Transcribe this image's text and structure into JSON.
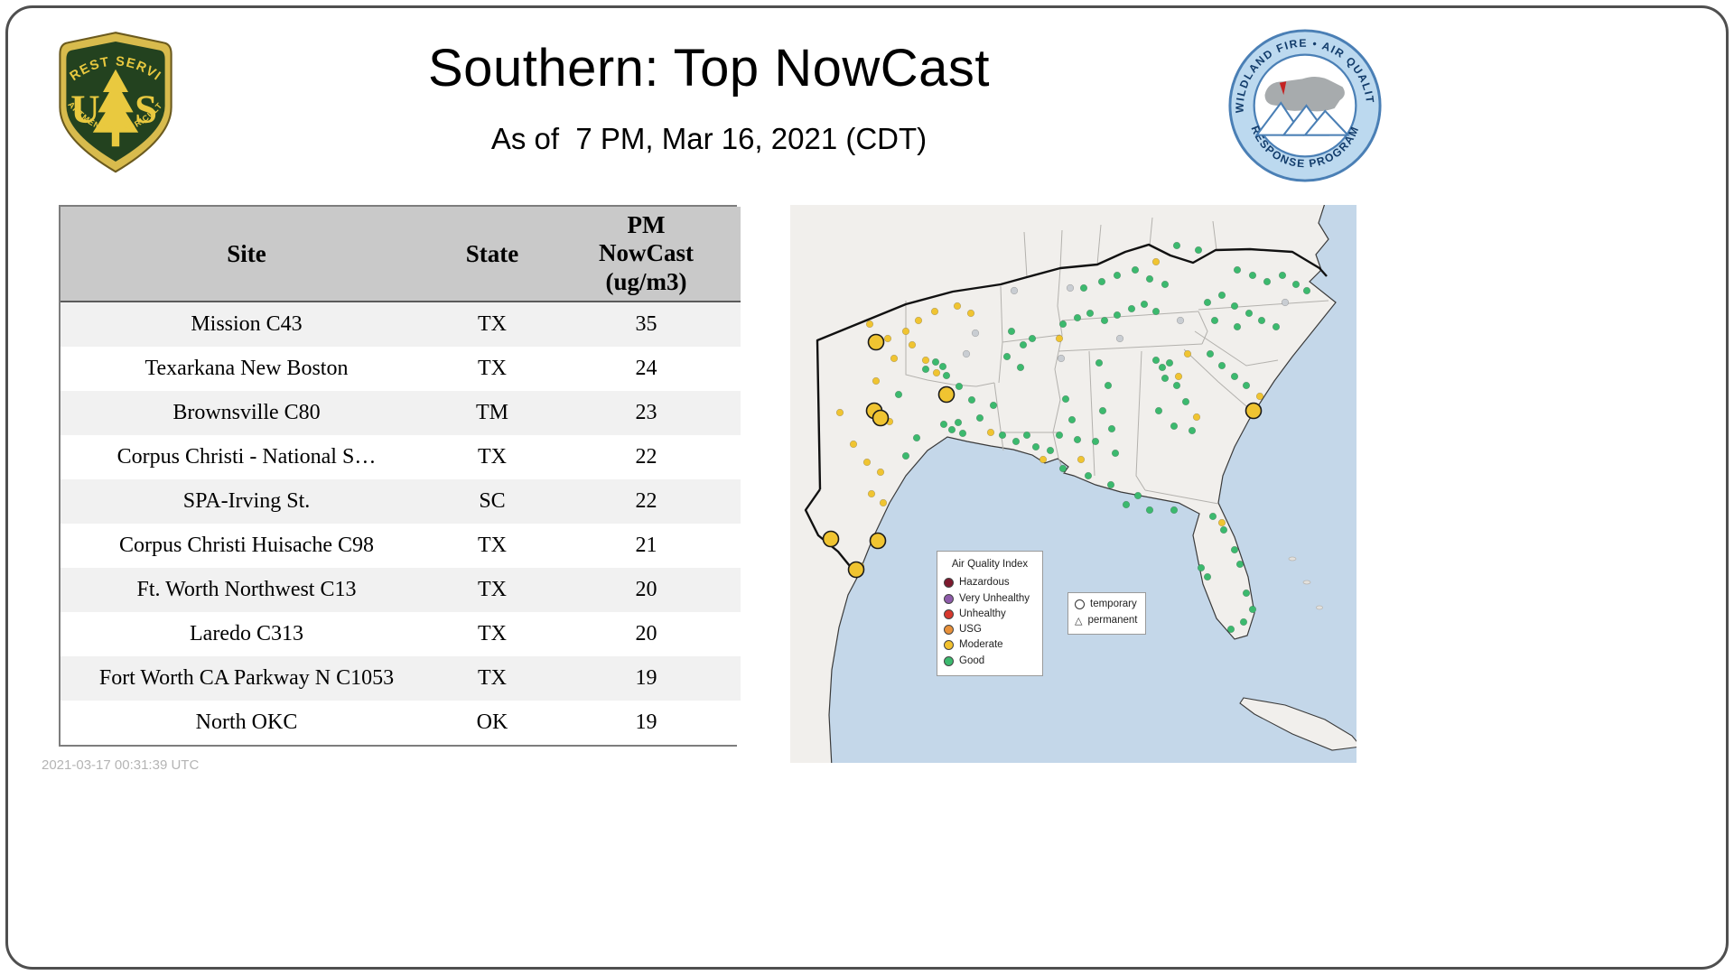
{
  "page": {
    "title": "Southern: Top NowCast",
    "subtitle": "As of  7 PM, Mar 16, 2021 (CDT)",
    "timestamp": "2021-03-17 00:31:39 UTC"
  },
  "logos": {
    "forest_service": {
      "arc_top": "FOREST SERVICE",
      "letter_left": "U",
      "letter_right": "S",
      "arc_bottom": "DEPARTMENT OF AGRICULTURE"
    },
    "air_quality": {
      "arc_top": "WILDLAND FIRE • AIR QUALITY",
      "arc_bottom": "RESPONSE PROGRAM"
    }
  },
  "table": {
    "header_display": {
      "site": "Site",
      "state": "State",
      "pm": "PM\nNowCast\n(ug/m3)"
    },
    "rows": [
      [
        "Mission C43",
        "TX",
        "35"
      ],
      [
        "Texarkana New Boston",
        "TX",
        "24"
      ],
      [
        "Brownsville C80",
        "TM",
        "23"
      ],
      [
        "Corpus Christi - National S…",
        "TX",
        "22"
      ],
      [
        "SPA-Irving St.",
        "SC",
        "22"
      ],
      [
        "Corpus Christi Huisache C98",
        "TX",
        "21"
      ],
      [
        "Ft. Worth Northwest C13",
        "TX",
        "20"
      ],
      [
        "Laredo C313",
        "TX",
        "20"
      ],
      [
        "Fort Worth CA Parkway N C1053",
        "TX",
        "19"
      ],
      [
        "North OKC",
        "OK",
        "19"
      ]
    ]
  },
  "chart_data": {
    "type": "table",
    "title": "Southern: Top NowCast",
    "subtitle": "As of  7 PM, Mar 16, 2021 (CDT)",
    "columns": [
      "Site",
      "State",
      "PM NowCast (ug/m3)"
    ],
    "rows": [
      [
        "Mission C43",
        "TX",
        35
      ],
      [
        "Texarkana New Boston",
        "TX",
        24
      ],
      [
        "Brownsville C80",
        "TM",
        23
      ],
      [
        "Corpus Christi - National S…",
        "TX",
        22
      ],
      [
        "SPA-Irving St.",
        "SC",
        22
      ],
      [
        "Corpus Christi Huisache C98",
        "TX",
        21
      ],
      [
        "Ft. Worth Northwest C13",
        "TX",
        20
      ],
      [
        "Laredo C313",
        "TX",
        20
      ],
      [
        "Fort Worth CA Parkway N C1053",
        "TX",
        19
      ],
      [
        "North OKC",
        "OK",
        19
      ]
    ]
  },
  "map": {
    "legend": {
      "title": "Air Quality Index",
      "items": [
        {
          "label": "Hazardous",
          "color": "#7d1a2e"
        },
        {
          "label": "Very Unhealthy",
          "color": "#8e5baa"
        },
        {
          "label": "Unhealthy",
          "color": "#d7382e"
        },
        {
          "label": "USG",
          "color": "#e8913a"
        },
        {
          "label": "Moderate",
          "color": "#f2c12e"
        },
        {
          "label": "Good",
          "color": "#3cb96e"
        }
      ]
    },
    "marker_legend": {
      "temporary": "temporary",
      "permanent": "permanent"
    },
    "colors": {
      "g": "#3cb96e",
      "y": "#f0c431",
      "n": "#c9cdd2"
    },
    "dots": [
      [
        150,
        182,
        "g"
      ],
      [
        161,
        174,
        "g"
      ],
      [
        169,
        179,
        "g"
      ],
      [
        173,
        189,
        "g"
      ],
      [
        187,
        201,
        "g"
      ],
      [
        201,
        216,
        "g"
      ],
      [
        210,
        236,
        "g"
      ],
      [
        225,
        222,
        "g"
      ],
      [
        170,
        243,
        "g"
      ],
      [
        179,
        249,
        "g"
      ],
      [
        186,
        241,
        "g"
      ],
      [
        191,
        253,
        "g"
      ],
      [
        140,
        258,
        "g"
      ],
      [
        128,
        278,
        "g"
      ],
      [
        120,
        210,
        "g"
      ],
      [
        245,
        140,
        "g"
      ],
      [
        258,
        155,
        "g"
      ],
      [
        268,
        148,
        "g"
      ],
      [
        240,
        168,
        "g"
      ],
      [
        255,
        180,
        "g"
      ],
      [
        235,
        255,
        "g"
      ],
      [
        250,
        262,
        "g"
      ],
      [
        262,
        255,
        "g"
      ],
      [
        272,
        268,
        "g"
      ],
      [
        288,
        272,
        "g"
      ],
      [
        305,
        215,
        "g"
      ],
      [
        312,
        238,
        "g"
      ],
      [
        298,
        255,
        "g"
      ],
      [
        318,
        260,
        "g"
      ],
      [
        342,
        175,
        "g"
      ],
      [
        352,
        200,
        "g"
      ],
      [
        346,
        228,
        "g"
      ],
      [
        356,
        248,
        "g"
      ],
      [
        338,
        262,
        "g"
      ],
      [
        360,
        275,
        "g"
      ],
      [
        405,
        172,
        "g"
      ],
      [
        412,
        180,
        "g"
      ],
      [
        420,
        175,
        "g"
      ],
      [
        415,
        192,
        "g"
      ],
      [
        428,
        200,
        "g"
      ],
      [
        438,
        218,
        "g"
      ],
      [
        408,
        228,
        "g"
      ],
      [
        425,
        245,
        "g"
      ],
      [
        445,
        250,
        "g"
      ],
      [
        372,
        332,
        "g"
      ],
      [
        398,
        338,
        "g"
      ],
      [
        425,
        338,
        "g"
      ],
      [
        468,
        345,
        "g"
      ],
      [
        480,
        360,
        "g"
      ],
      [
        492,
        382,
        "g"
      ],
      [
        498,
        398,
        "g"
      ],
      [
        455,
        402,
        "g"
      ],
      [
        462,
        412,
        "g"
      ],
      [
        505,
        430,
        "g"
      ],
      [
        512,
        448,
        "g"
      ],
      [
        502,
        462,
        "g"
      ],
      [
        488,
        470,
        "g"
      ],
      [
        302,
        132,
        "g"
      ],
      [
        318,
        125,
        "g"
      ],
      [
        332,
        120,
        "g"
      ],
      [
        348,
        128,
        "g"
      ],
      [
        362,
        122,
        "g"
      ],
      [
        378,
        115,
        "g"
      ],
      [
        392,
        110,
        "g"
      ],
      [
        405,
        118,
        "g"
      ],
      [
        325,
        92,
        "g"
      ],
      [
        345,
        85,
        "g"
      ],
      [
        362,
        78,
        "g"
      ],
      [
        382,
        72,
        "g"
      ],
      [
        398,
        82,
        "g"
      ],
      [
        415,
        88,
        "g"
      ],
      [
        428,
        45,
        "g"
      ],
      [
        452,
        50,
        "g"
      ],
      [
        462,
        108,
        "g"
      ],
      [
        478,
        100,
        "g"
      ],
      [
        492,
        112,
        "g"
      ],
      [
        508,
        120,
        "g"
      ],
      [
        522,
        128,
        "g"
      ],
      [
        538,
        135,
        "g"
      ],
      [
        470,
        128,
        "g"
      ],
      [
        495,
        135,
        "g"
      ],
      [
        465,
        165,
        "g"
      ],
      [
        478,
        178,
        "g"
      ],
      [
        492,
        190,
        "g"
      ],
      [
        505,
        200,
        "g"
      ],
      [
        495,
        72,
        "g"
      ],
      [
        512,
        78,
        "g"
      ],
      [
        528,
        85,
        "g"
      ],
      [
        545,
        78,
        "g"
      ],
      [
        560,
        88,
        "g"
      ],
      [
        572,
        95,
        "g"
      ],
      [
        302,
        292,
        "g"
      ],
      [
        330,
        300,
        "g"
      ],
      [
        355,
        310,
        "g"
      ],
      [
        385,
        322,
        "g"
      ],
      [
        88,
        132,
        "y"
      ],
      [
        108,
        148,
        "y"
      ],
      [
        128,
        140,
        "y"
      ],
      [
        142,
        128,
        "y"
      ],
      [
        160,
        118,
        "y"
      ],
      [
        185,
        112,
        "y"
      ],
      [
        200,
        120,
        "y"
      ],
      [
        135,
        155,
        "y"
      ],
      [
        115,
        170,
        "y"
      ],
      [
        150,
        172,
        "y"
      ],
      [
        162,
        186,
        "y"
      ],
      [
        95,
        195,
        "y"
      ],
      [
        110,
        240,
        "y"
      ],
      [
        100,
        296,
        "y"
      ],
      [
        90,
        320,
        "y"
      ],
      [
        103,
        330,
        "y"
      ],
      [
        78,
        400,
        "y"
      ],
      [
        55,
        230,
        "y"
      ],
      [
        70,
        265,
        "y"
      ],
      [
        85,
        285,
        "y"
      ],
      [
        298,
        148,
        "y"
      ],
      [
        322,
        282,
        "y"
      ],
      [
        280,
        282,
        "y"
      ],
      [
        222,
        252,
        "y"
      ],
      [
        430,
        190,
        "y"
      ],
      [
        450,
        235,
        "y"
      ],
      [
        520,
        212,
        "y"
      ],
      [
        478,
        352,
        "y"
      ],
      [
        405,
        63,
        "y"
      ],
      [
        440,
        165,
        "y"
      ],
      [
        205,
        142,
        "n"
      ],
      [
        248,
        95,
        "n"
      ],
      [
        300,
        170,
        "n"
      ],
      [
        365,
        148,
        "n"
      ],
      [
        432,
        128,
        "n"
      ],
      [
        548,
        108,
        "n"
      ],
      [
        195,
        165,
        "n"
      ],
      [
        310,
        92,
        "n"
      ]
    ],
    "temp_markers": [
      [
        95,
        152
      ],
      [
        173,
        210
      ],
      [
        93,
        228
      ],
      [
        100,
        236
      ],
      [
        45,
        370
      ],
      [
        97,
        372
      ],
      [
        73,
        404
      ],
      [
        513,
        228
      ]
    ]
  }
}
